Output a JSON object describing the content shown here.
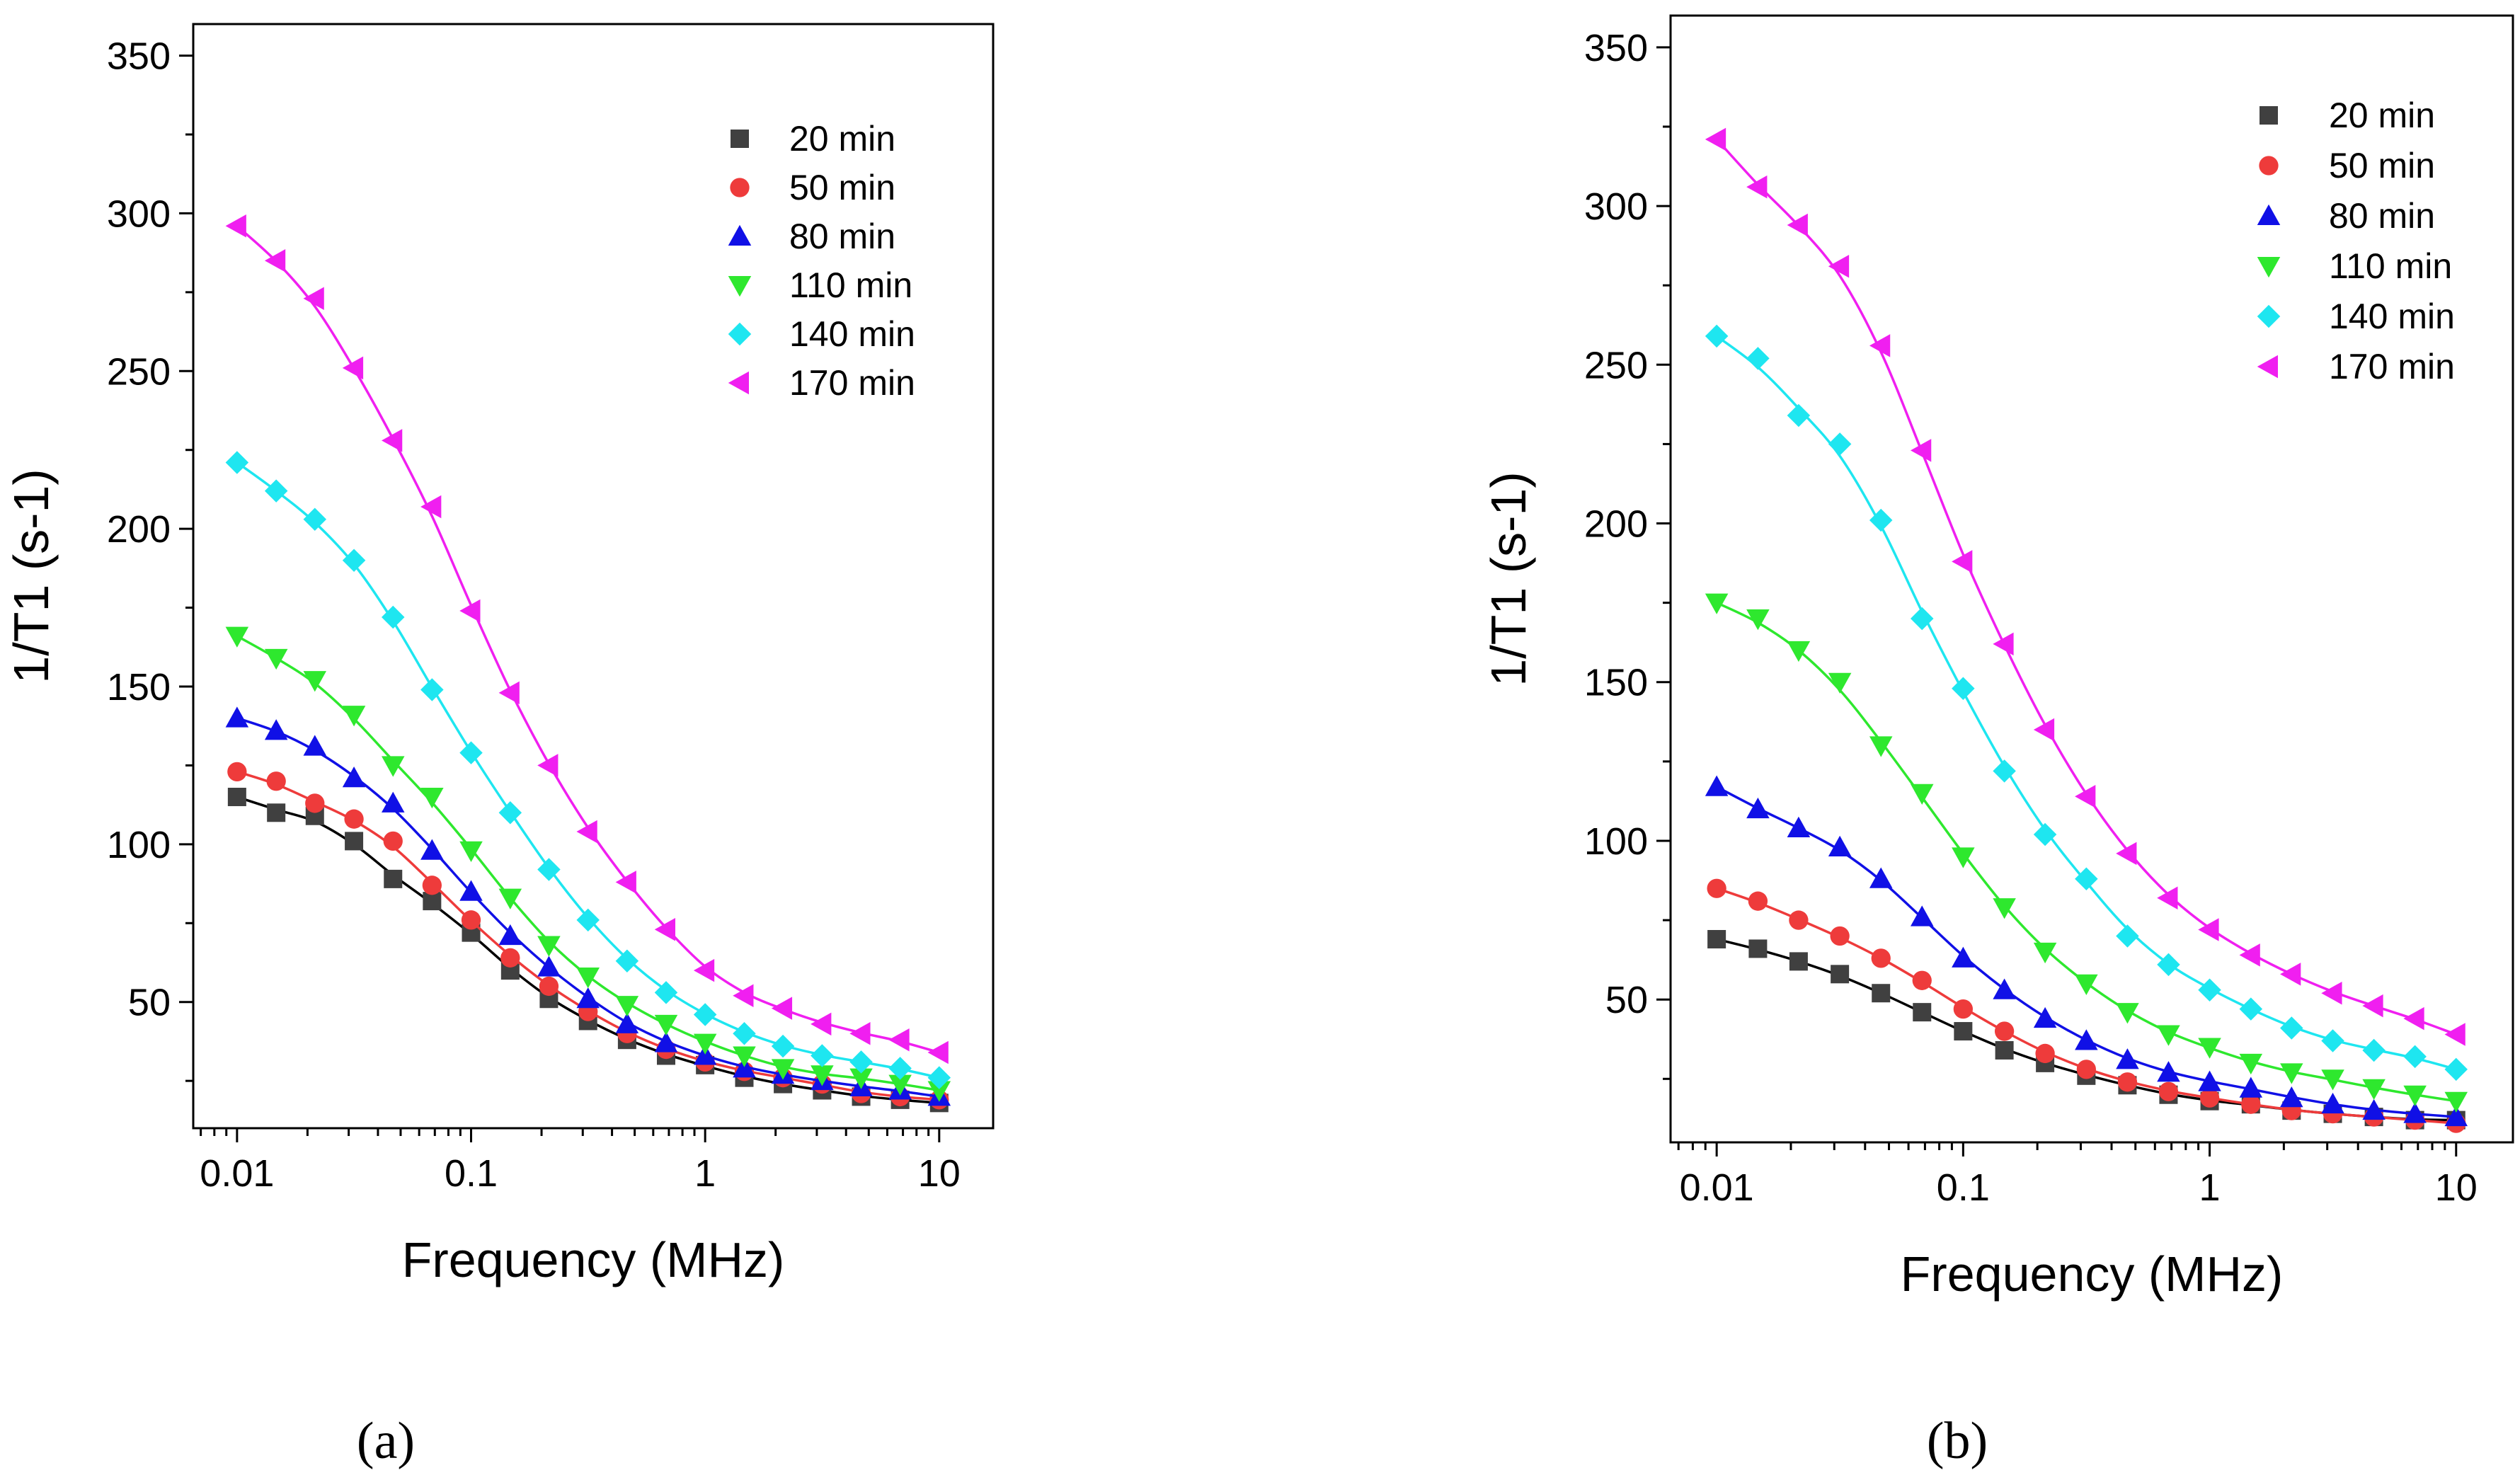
{
  "chart_data": [
    {
      "panel": "(a)",
      "type": "scatter",
      "xlabel": "Frequency (MHz)",
      "ylabel": "1/T1 (s-1)",
      "xscale": "log",
      "xlim": [
        0.0065,
        17
      ],
      "ylim": [
        10,
        360
      ],
      "x_ticks": [
        0.01,
        0.1,
        1,
        10
      ],
      "x_tick_labels": [
        "0.01",
        "0.1",
        "1",
        "10"
      ],
      "y_ticks": [
        50,
        100,
        150,
        200,
        250,
        300,
        350
      ],
      "y_tick_labels": [
        "50",
        "100",
        "150",
        "200",
        "250",
        "300",
        "350"
      ],
      "legend_position": "top-right",
      "x": [
        0.01,
        0.0147,
        0.0215,
        0.0316,
        0.0464,
        0.0681,
        0.1,
        0.147,
        0.215,
        0.316,
        0.464,
        0.681,
        1,
        1.47,
        2.15,
        3.16,
        4.64,
        6.81,
        10
      ],
      "series": [
        {
          "name": "20 min",
          "marker": "square",
          "color": "#404040",
          "values": [
            115,
            110,
            109,
            101,
            89,
            82,
            72,
            60,
            51,
            44,
            38,
            33,
            30,
            26,
            24,
            22,
            20,
            19,
            18
          ]
        },
        {
          "name": "50 min",
          "marker": "circle",
          "color": "#ee3b3b",
          "values": [
            123,
            120,
            113,
            108,
            101,
            87,
            76,
            64,
            55,
            47,
            40,
            35,
            31,
            28,
            26,
            24,
            21,
            20,
            19
          ]
        },
        {
          "name": "80 min",
          "marker": "triangle-up",
          "color": "#1010e6",
          "values": [
            140,
            136,
            131,
            121,
            113,
            98,
            85,
            71,
            61,
            51,
            43,
            37,
            33,
            29,
            27,
            25,
            23,
            22,
            20
          ]
        },
        {
          "name": "110 min",
          "marker": "triangle-down",
          "color": "#2ee82e",
          "values": [
            166,
            159,
            152,
            141,
            125,
            115,
            98,
            83,
            68,
            58,
            49,
            43,
            37,
            33,
            29,
            27,
            26,
            24,
            22
          ]
        },
        {
          "name": "140 min",
          "marker": "diamond",
          "color": "#1ee6f0",
          "values": [
            221,
            212,
            203,
            190,
            172,
            149,
            129,
            110,
            92,
            76,
            63,
            53,
            46,
            40,
            36,
            33,
            31,
            29,
            26
          ]
        },
        {
          "name": "170 min",
          "marker": "triangle-left",
          "color": "#f01ff0",
          "values": [
            296,
            285,
            273,
            251,
            228,
            207,
            174,
            148,
            125,
            104,
            88,
            73,
            60,
            52,
            48,
            43,
            40,
            38,
            34
          ]
        }
      ]
    },
    {
      "panel": "(b)",
      "type": "scatter",
      "xlabel": "Frequency (MHz)",
      "ylabel": "1/T1 (s-1)",
      "xscale": "log",
      "xlim": [
        0.0065,
        17
      ],
      "ylim": [
        5,
        360
      ],
      "x_ticks": [
        0.01,
        0.1,
        1,
        10
      ],
      "x_tick_labels": [
        "0.01",
        "0.1",
        "1",
        "10"
      ],
      "y_ticks": [
        50,
        100,
        150,
        200,
        250,
        300,
        350
      ],
      "y_tick_labels": [
        "50",
        "100",
        "150",
        "200",
        "250",
        "300",
        "350"
      ],
      "legend_position": "top-right",
      "x": [
        0.01,
        0.0147,
        0.0215,
        0.0316,
        0.0464,
        0.0681,
        0.1,
        0.147,
        0.215,
        0.316,
        0.464,
        0.681,
        1,
        1.47,
        2.15,
        3.16,
        4.64,
        6.81,
        10
      ],
      "series": [
        {
          "name": "20 min",
          "marker": "square",
          "color": "#404040",
          "values": [
            69,
            66,
            62,
            58,
            52,
            46,
            40,
            34,
            30,
            26,
            23,
            20,
            18,
            17,
            15,
            14,
            13,
            12,
            12
          ]
        },
        {
          "name": "50 min",
          "marker": "circle",
          "color": "#ee3b3b",
          "values": [
            85,
            81,
            75,
            70,
            63,
            56,
            47,
            40,
            33,
            28,
            24,
            21,
            19,
            17,
            15,
            14,
            13,
            12,
            11
          ]
        },
        {
          "name": "80 min",
          "marker": "triangle-up",
          "color": "#1010e6",
          "values": [
            117,
            110,
            104,
            98,
            88,
            76,
            63,
            53,
            44,
            37,
            31,
            27,
            24,
            22,
            19,
            17,
            15,
            14,
            13
          ]
        },
        {
          "name": "110 min",
          "marker": "triangle-down",
          "color": "#2ee82e",
          "values": [
            175,
            170,
            160,
            150,
            130,
            115,
            95,
            79,
            65,
            55,
            46,
            39,
            35,
            30,
            27,
            25,
            22,
            20,
            18
          ]
        },
        {
          "name": "140 min",
          "marker": "diamond",
          "color": "#1ee6f0",
          "values": [
            259,
            252,
            234,
            225,
            201,
            170,
            148,
            122,
            102,
            88,
            70,
            61,
            53,
            47,
            41,
            37,
            34,
            32,
            28
          ]
        },
        {
          "name": "170 min",
          "marker": "triangle-left",
          "color": "#f01ff0",
          "values": [
            321,
            306,
            294,
            281,
            256,
            223,
            188,
            162,
            135,
            114,
            96,
            82,
            72,
            64,
            58,
            52,
            48,
            44,
            39
          ]
        }
      ]
    }
  ]
}
